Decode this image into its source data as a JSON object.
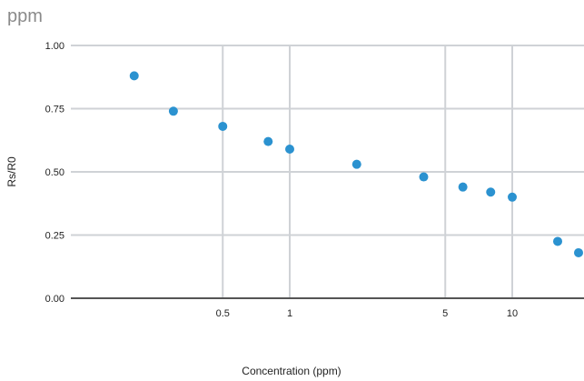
{
  "chart_data": {
    "type": "scatter",
    "title": "ppm",
    "xlabel": "Concentration (ppm)",
    "ylabel": "Rs/R0",
    "x_scale": "log",
    "xlim": [
      0.2,
      20
    ],
    "ylim": [
      0,
      1
    ],
    "x_ticks": [
      {
        "value": 0.5,
        "label": "0.5"
      },
      {
        "value": 1,
        "label": "1"
      },
      {
        "value": 5,
        "label": "5"
      },
      {
        "value": 10,
        "label": "10"
      }
    ],
    "y_ticks": [
      {
        "value": 0,
        "label": "0.00"
      },
      {
        "value": 0.25,
        "label": "0.25"
      },
      {
        "value": 0.5,
        "label": "0.50"
      },
      {
        "value": 0.75,
        "label": "0.75"
      },
      {
        "value": 1,
        "label": "1.00"
      }
    ],
    "grid": true,
    "colors": {
      "points": "#2b92d0",
      "grid": "#cfd2d6",
      "baseline": "#555555",
      "title": "#8a8a8a"
    },
    "series": [
      {
        "points": [
          {
            "x": 0.2,
            "y": 0.88
          },
          {
            "x": 0.3,
            "y": 0.74
          },
          {
            "x": 0.5,
            "y": 0.68
          },
          {
            "x": 0.8,
            "y": 0.62
          },
          {
            "x": 1.0,
            "y": 0.59
          },
          {
            "x": 2.0,
            "y": 0.53
          },
          {
            "x": 4.0,
            "y": 0.48
          },
          {
            "x": 6.0,
            "y": 0.44
          },
          {
            "x": 8.0,
            "y": 0.42
          },
          {
            "x": 10.0,
            "y": 0.4
          },
          {
            "x": 16.0,
            "y": 0.225
          },
          {
            "x": 20.0,
            "y": 0.18
          }
        ]
      }
    ]
  }
}
